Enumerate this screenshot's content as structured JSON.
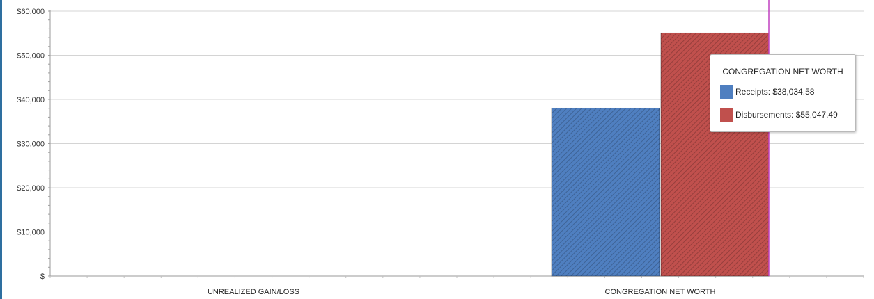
{
  "chart_data": {
    "type": "bar",
    "categories": [
      "UNREALIZED GAIN/LOSS",
      "CONGREGATION NET WORTH"
    ],
    "series": [
      {
        "name": "Receipts",
        "color": "#4f7fc0",
        "values": [
          0,
          38034.58
        ]
      },
      {
        "name": "Disbursements",
        "color": "#c0504d",
        "values": [
          0,
          55047.49
        ]
      }
    ],
    "ylim": [
      0,
      60000
    ],
    "yticks": [
      {
        "value": 0,
        "label": "$"
      },
      {
        "value": 10000,
        "label": "$10,000"
      },
      {
        "value": 20000,
        "label": "$20,000"
      },
      {
        "value": 30000,
        "label": "$30,000"
      },
      {
        "value": 40000,
        "label": "$40,000"
      },
      {
        "value": 50000,
        "label": "$50,000"
      },
      {
        "value": 60000,
        "label": "$60,000"
      }
    ],
    "grid": true,
    "xlabel": "",
    "ylabel": "",
    "hovered_category": "CONGREGATION NET WORTH"
  },
  "tooltip": {
    "title": "CONGREGATION NET WORTH",
    "rows": [
      {
        "text": "Receipts: $38,034.58",
        "color": "#4f7fc0"
      },
      {
        "text": "Disbursements: $55,047.49",
        "color": "#c0504d"
      }
    ]
  }
}
